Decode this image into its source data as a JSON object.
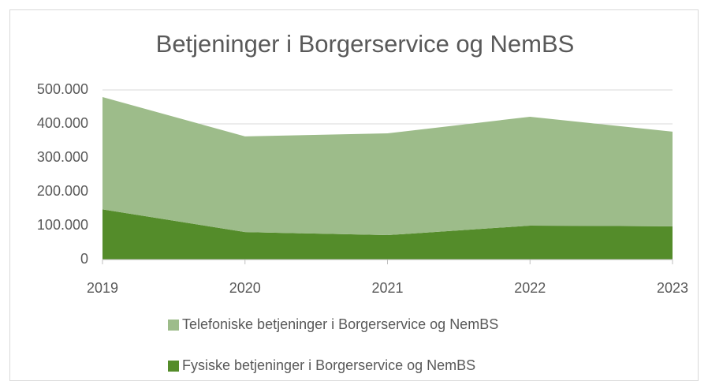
{
  "chart_data": {
    "type": "stacked_area",
    "title": "Betjeninger i Borgerservice og NemBS",
    "categories": [
      "2019",
      "2020",
      "2021",
      "2022",
      "2023"
    ],
    "series": [
      {
        "name": "Fysiske betjeninger i Borgerservice og NemBS",
        "color": "#548c2a",
        "values": [
          148000,
          81000,
          72000,
          100000,
          98000
        ]
      },
      {
        "name": "Telefoniske betjeninger i Borgerservice og NemBS",
        "color": "#9dbc8a",
        "values": [
          331000,
          282000,
          300000,
          321000,
          279000
        ]
      }
    ],
    "ylim": [
      0,
      500000
    ],
    "yticks": [
      0,
      {
        "value": 100000,
        "label": "100.000"
      },
      {
        "value": 200000,
        "label": "200.000"
      },
      {
        "value": 300000,
        "label": "300.000"
      },
      {
        "value": 400000,
        "label": "400.000"
      },
      {
        "value": 500000,
        "label": "500.000"
      }
    ],
    "grid": true,
    "legend": "bottom"
  }
}
